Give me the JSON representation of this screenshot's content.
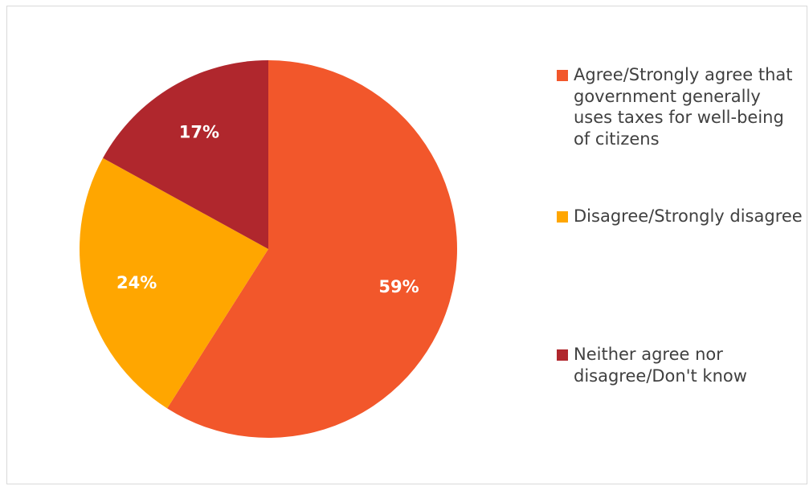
{
  "chart_data": {
    "type": "pie",
    "title": "",
    "slices": [
      {
        "label": "Agree/Strongly agree that government generally uses taxes for well-being of citizens",
        "value": 59,
        "value_label": "59%",
        "color": "#f2572b"
      },
      {
        "label": "Disagree/Strongly disagree",
        "value": 24,
        "value_label": "24%",
        "color": "#ffa600"
      },
      {
        "label": "Neither agree nor disagree/Don't know",
        "value": 17,
        "value_label": "17%",
        "color": "#b0272d"
      }
    ],
    "legend_position": "right",
    "start_angle": "12 o'clock",
    "direction": "clockwise"
  }
}
